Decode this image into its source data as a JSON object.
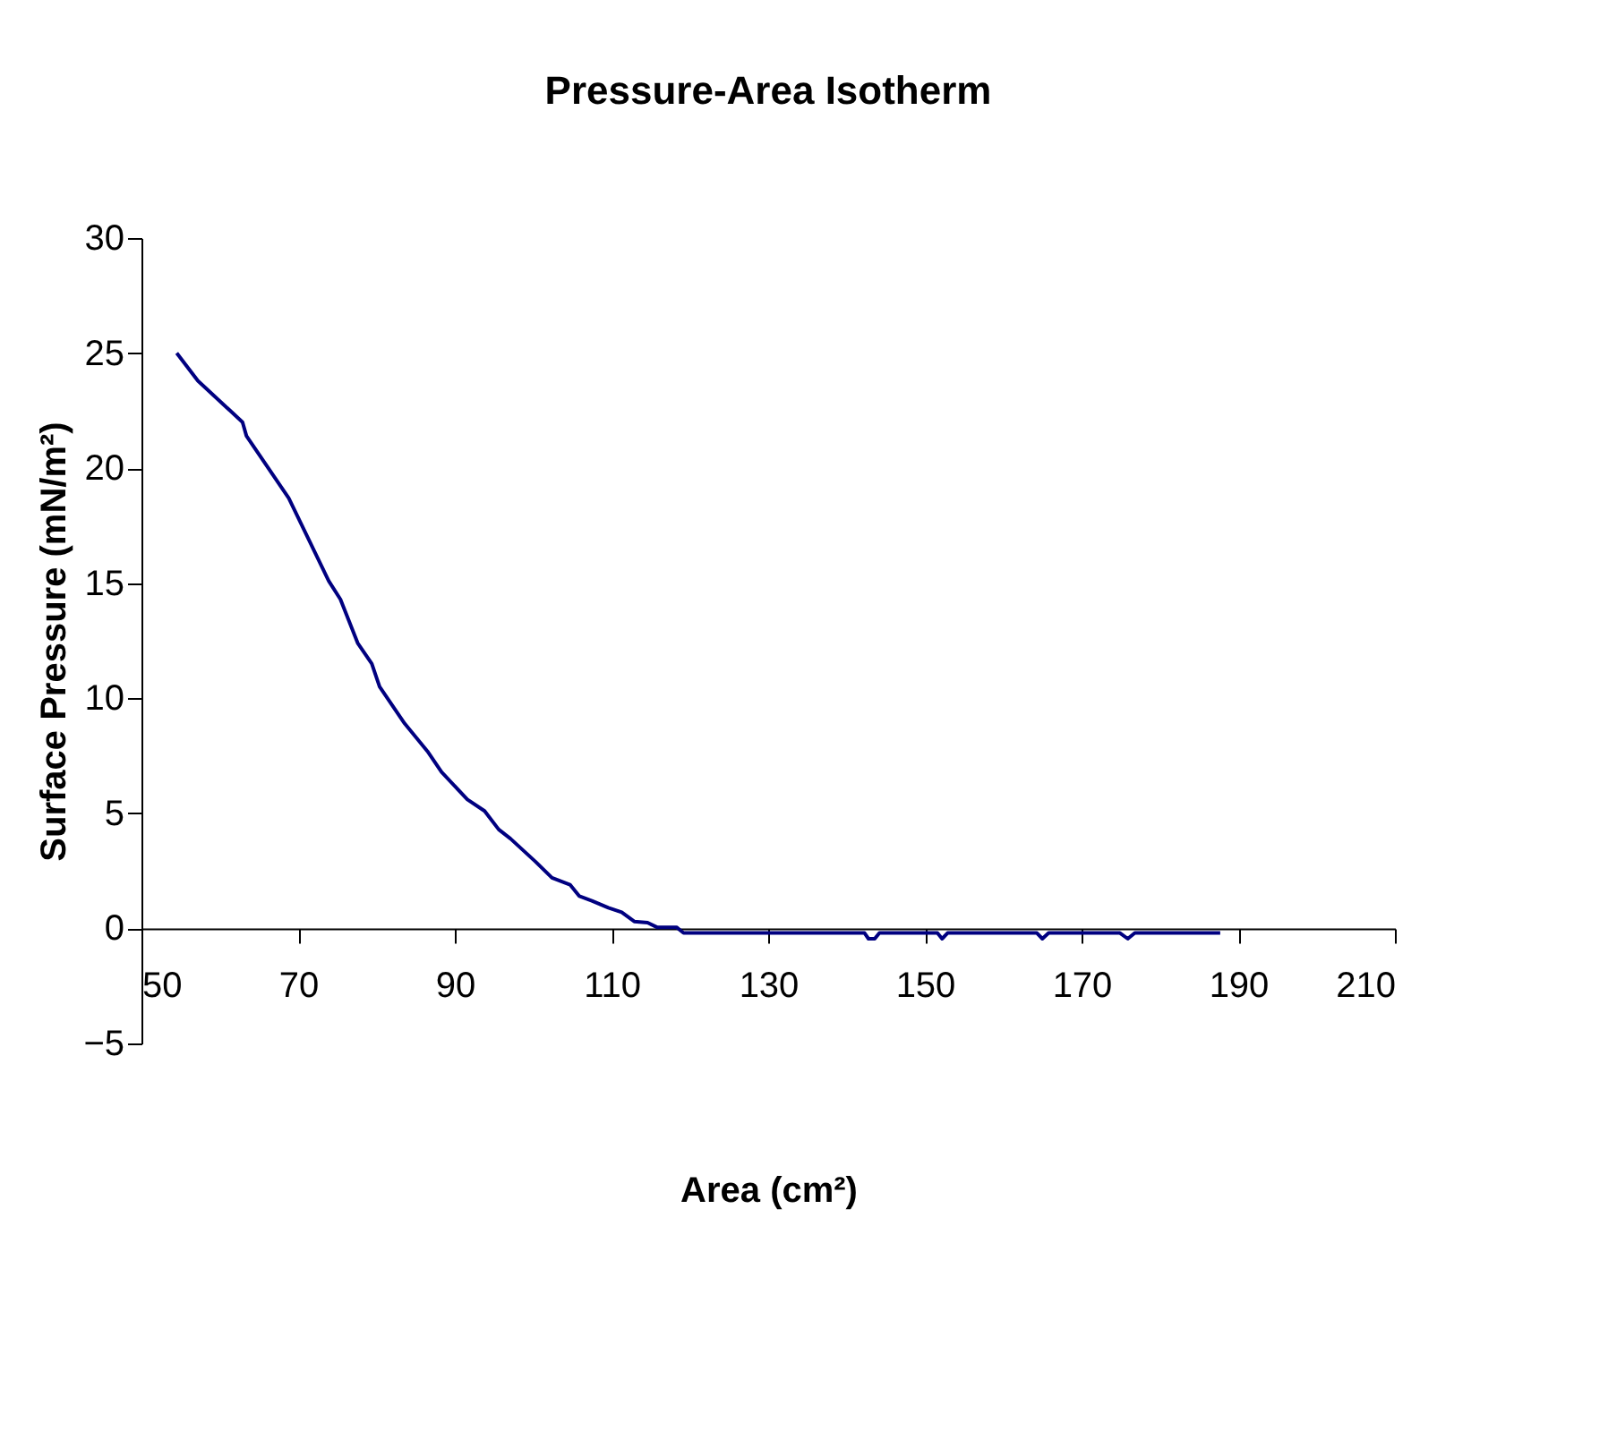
{
  "chart_data": {
    "type": "line",
    "title": "Pressure-Area Isotherm",
    "xlabel": "Area (cm²)",
    "ylabel": "Surface Pressure (mN/m²)",
    "x": [
      54.5,
      57.2,
      62.9,
      63.4,
      68.8,
      73.9,
      75.4,
      77.6,
      79.4,
      80.4,
      83.6,
      86.5,
      88.3,
      91.6,
      93.8,
      95.6,
      97.1,
      100.3,
      102.4,
      104.7,
      105.9,
      107.5,
      109.6,
      111.3,
      112.9,
      114.6,
      115.8,
      118.3,
      119.2,
      142.3,
      142.8,
      143.6,
      144.2,
      151.6,
      152.2,
      152.9,
      164.3,
      165.0,
      165.8,
      174.9,
      175.9,
      176.8,
      187.7
    ],
    "series": [
      {
        "color": "#000080",
        "values": [
          25.0,
          23.8,
          22.0,
          21.4,
          18.7,
          15.1,
          14.3,
          12.4,
          11.5,
          10.5,
          8.9,
          7.7,
          6.8,
          5.6,
          5.1,
          4.3,
          3.9,
          2.9,
          2.2,
          1.9,
          1.4,
          1.2,
          0.9,
          0.7,
          0.3,
          0.25,
          0.05,
          0.05,
          -0.2,
          -0.2,
          -0.45,
          -0.45,
          -0.2,
          -0.2,
          -0.45,
          -0.2,
          -0.2,
          -0.45,
          -0.2,
          -0.2,
          -0.45,
          -0.2,
          -0.2
        ]
      }
    ],
    "xlim": [
      50,
      210
    ],
    "xticks": [
      50,
      70,
      90,
      110,
      130,
      150,
      170,
      190,
      210
    ],
    "ylim": [
      -5,
      30
    ],
    "yticks": [
      -5,
      0,
      5,
      10,
      15,
      20,
      25,
      30
    ],
    "grid": false,
    "marker": "none",
    "line_style": "solid"
  }
}
